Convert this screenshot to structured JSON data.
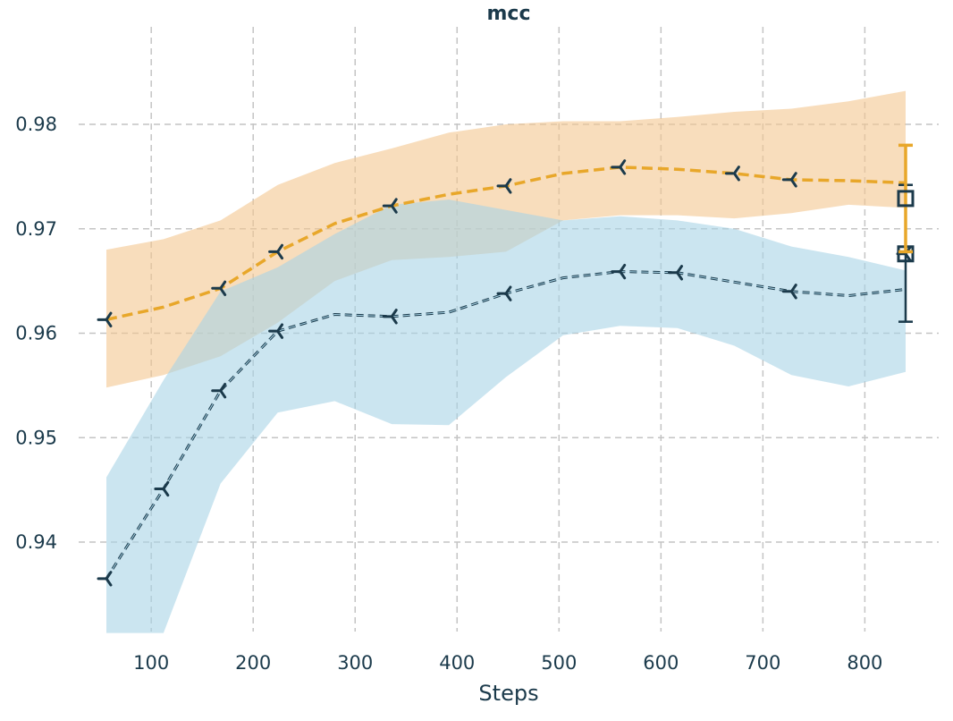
{
  "chart_data": {
    "type": "line",
    "title": "mcc",
    "xlabel": "Steps",
    "ylabel": "",
    "xlim": [
      50,
      850
    ],
    "ylim": [
      0.9313,
      0.9853
    ],
    "xticks": [
      100,
      200,
      300,
      400,
      500,
      600,
      700,
      800
    ],
    "yticks": [
      0.94,
      0.95,
      0.96,
      0.97,
      0.98
    ],
    "xtick_labels": [
      "100",
      "200",
      "300",
      "400",
      "500",
      "600",
      "700",
      "800"
    ],
    "ytick_labels": [
      "0.94",
      "0.95",
      "0.96",
      "0.97",
      "0.98"
    ],
    "grid": true,
    "series": [
      {
        "color": "#E8A72A",
        "band_color": "#F4C78F",
        "x": [
          56,
          112,
          168,
          224,
          280,
          336,
          392,
          448,
          504,
          560,
          616,
          672,
          728,
          784,
          840
        ],
        "values": [
          0.9613,
          0.9625,
          0.9643,
          0.9678,
          0.9705,
          0.9722,
          0.9733,
          0.9741,
          0.9753,
          0.9759,
          0.9757,
          0.9753,
          0.9747,
          0.9746,
          0.9744
        ],
        "lower": [
          0.9548,
          0.956,
          0.9578,
          0.961,
          0.965,
          0.967,
          0.9673,
          0.9678,
          0.9708,
          0.9713,
          0.9713,
          0.971,
          0.9715,
          0.9723,
          0.972
        ],
        "upper": [
          0.968,
          0.969,
          0.9708,
          0.9742,
          0.9763,
          0.9777,
          0.9792,
          0.98,
          0.9803,
          0.9803,
          0.9807,
          0.9812,
          0.9815,
          0.9822,
          0.9832
        ],
        "marker_x": [
          56,
          168,
          224,
          336,
          448,
          560,
          672,
          728
        ],
        "final": {
          "x": 840,
          "value": 0.9729,
          "lower": 0.9678,
          "upper": 0.978
        }
      },
      {
        "color": "#1B3A4B",
        "band_color": "#A8D4E6",
        "x": [
          56,
          112,
          168,
          224,
          280,
          336,
          392,
          448,
          504,
          560,
          616,
          672,
          728,
          784,
          840
        ],
        "values": [
          0.9365,
          0.9451,
          0.9545,
          0.9602,
          0.9618,
          0.9616,
          0.962,
          0.9638,
          0.9653,
          0.9659,
          0.9658,
          0.9649,
          0.964,
          0.9636,
          0.9642
        ],
        "lower": [
          0.9313,
          0.9313,
          0.9456,
          0.9524,
          0.9535,
          0.9513,
          0.9512,
          0.9558,
          0.9598,
          0.9607,
          0.9605,
          0.9588,
          0.956,
          0.9549,
          0.9563
        ],
        "upper": [
          0.9462,
          0.9555,
          0.964,
          0.9663,
          0.9695,
          0.9723,
          0.9728,
          0.9718,
          0.9708,
          0.9712,
          0.9708,
          0.97,
          0.9683,
          0.9673,
          0.966
        ],
        "marker_x": [
          56,
          112,
          168,
          224,
          336,
          448,
          560,
          616,
          728
        ],
        "final": {
          "x": 840,
          "value": 0.9676,
          "lower": 0.9611,
          "upper": 0.9742
        }
      }
    ]
  }
}
